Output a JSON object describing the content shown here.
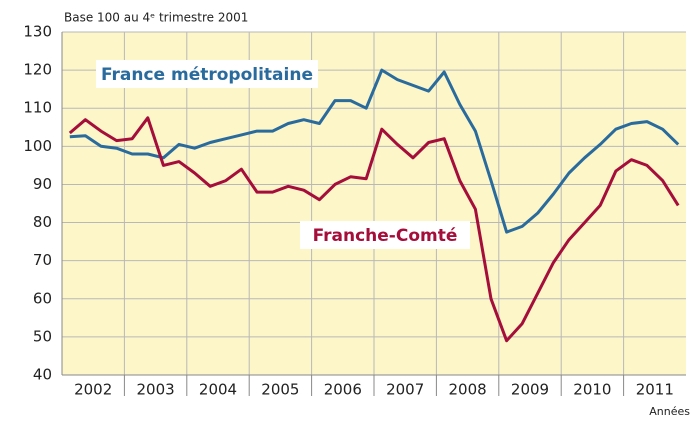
{
  "chart_data": {
    "type": "line",
    "subtitle": "Base 100 au 4ᵉ trimestre 2001",
    "x_label": "Années",
    "x": [
      2002.125,
      2002.375,
      2002.625,
      2002.875,
      2003.125,
      2003.375,
      2003.625,
      2003.875,
      2004.125,
      2004.375,
      2004.625,
      2004.875,
      2005.125,
      2005.375,
      2005.625,
      2005.875,
      2006.125,
      2006.375,
      2006.625,
      2006.875,
      2007.125,
      2007.375,
      2007.625,
      2007.875,
      2008.125,
      2008.375,
      2008.625,
      2008.875,
      2009.125,
      2009.375,
      2009.625,
      2009.875,
      2010.125,
      2010.375,
      2010.625,
      2010.875,
      2011.125,
      2011.375,
      2011.625,
      2011.875
    ],
    "series": [
      {
        "name": "France métropolitaine",
        "color": "#2a6b9e",
        "values": [
          102.5,
          102.8,
          100,
          99.5,
          98,
          98,
          97,
          100.5,
          99.5,
          101,
          102,
          103,
          104,
          104,
          106,
          107,
          106,
          112,
          112,
          110,
          120,
          117.5,
          116,
          114.5,
          119.5,
          111,
          104,
          91,
          77.5,
          79,
          82.5,
          87.5,
          93,
          97,
          100.5,
          104.5,
          106,
          106.5,
          104.5,
          100.5
        ]
      },
      {
        "name": "Franche-Comté",
        "color": "#a50d3a",
        "values": [
          103.5,
          107,
          104,
          101.5,
          102,
          107.5,
          95,
          96,
          93,
          89.5,
          91,
          94,
          88,
          88,
          89.5,
          88.5,
          86,
          90,
          92,
          91.5,
          104.5,
          100.5,
          97,
          101,
          102,
          91,
          83.5,
          60,
          49,
          53.5,
          61.5,
          69.5,
          75.5,
          80,
          84.5,
          93.5,
          96.5,
          95,
          91,
          84.5
        ]
      }
    ],
    "xlim": [
      2002,
      2012
    ],
    "xticks": [
      {
        "value": 2002.5,
        "label": "2002"
      },
      {
        "value": 2003.5,
        "label": "2003"
      },
      {
        "value": 2004.5,
        "label": "2004"
      },
      {
        "value": 2005.5,
        "label": "2005"
      },
      {
        "value": 2006.5,
        "label": "2006"
      },
      {
        "value": 2007.5,
        "label": "2007"
      },
      {
        "value": 2008.5,
        "label": "2008"
      },
      {
        "value": 2009.5,
        "label": "2009"
      },
      {
        "value": 2010.5,
        "label": "2010"
      },
      {
        "value": 2011.5,
        "label": "2011"
      }
    ],
    "xgrid": [
      2003,
      2004,
      2005,
      2006,
      2007,
      2008,
      2009,
      2010,
      2011
    ],
    "ylim": [
      40,
      130
    ],
    "yticks": [
      40,
      50,
      60,
      70,
      80,
      90,
      100,
      110,
      120,
      130
    ],
    "grid": true
  }
}
